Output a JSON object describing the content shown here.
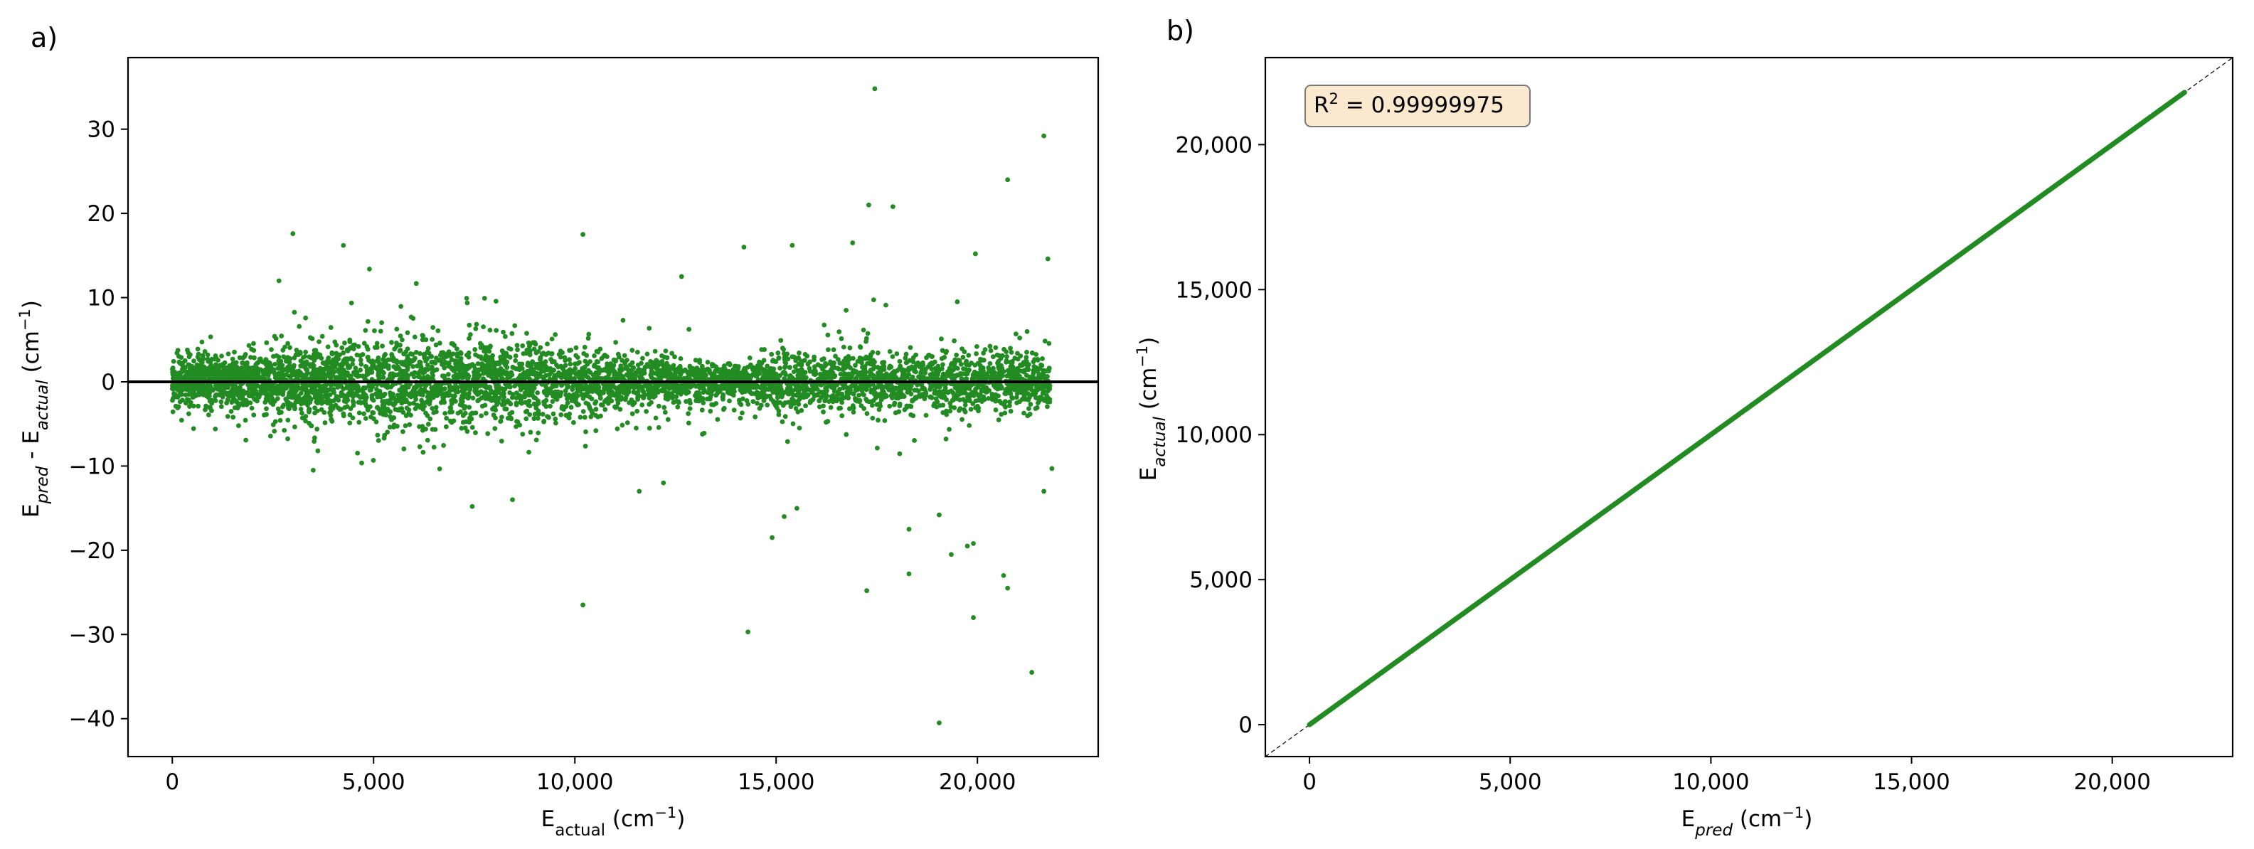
{
  "chart_data": [
    {
      "panel_label": "a)",
      "type": "scatter",
      "xlabel": {
        "main": "E",
        "sub": "actual",
        "unit": " (cm",
        "sup": "−1",
        "close": ")"
      },
      "ylabel": {
        "main": "E",
        "sub1": "pred",
        "mid": " - E",
        "sub2": "actual",
        "unit": " (cm",
        "sup": "−1",
        "close": ")"
      },
      "xlim": [
        -1100,
        23000
      ],
      "ylim": [
        -44.5,
        38.5
      ],
      "xticks": [
        0,
        5000,
        10000,
        15000,
        20000
      ],
      "xtick_labels": [
        "0",
        "5,000",
        "10,000",
        "15,000",
        "20,000"
      ],
      "yticks": [
        -40,
        -30,
        -20,
        -10,
        0,
        10,
        20,
        30
      ],
      "ytick_labels": [
        "−40",
        "−30",
        "−20",
        "−10",
        "0",
        "10",
        "20",
        "30"
      ],
      "reference_line": {
        "y": 0,
        "color": "#000000"
      },
      "marker_color": "#228b22",
      "series": [
        {
          "x_range": [
            0,
            21800
          ],
          "approx_count": 5200,
          "outliers": [
            [
              17450,
              34.8
            ],
            [
              21650,
              29.2
            ],
            [
              20750,
              24.0
            ],
            [
              17300,
              21.0
            ],
            [
              17900,
              20.8
            ],
            [
              4250,
              16.2
            ],
            [
              10200,
              17.5
            ],
            [
              14200,
              16.0
            ],
            [
              15400,
              16.2
            ],
            [
              16900,
              16.5
            ],
            [
              19950,
              15.2
            ],
            [
              21750,
              14.6
            ],
            [
              2650,
              12.0
            ],
            [
              12650,
              12.5
            ],
            [
              19500,
              9.5
            ],
            [
              7450,
              -14.8
            ],
            [
              14900,
              -18.5
            ],
            [
              15200,
              -16.0
            ],
            [
              18300,
              -17.5
            ],
            [
              18300,
              -22.8
            ],
            [
              19050,
              -15.8
            ],
            [
              19350,
              -20.5
            ],
            [
              19750,
              -19.5
            ],
            [
              19900,
              -19.2
            ],
            [
              20650,
              -23.0
            ],
            [
              20750,
              -24.5
            ],
            [
              19900,
              -28.0
            ],
            [
              10200,
              -26.5
            ],
            [
              14300,
              -29.7
            ],
            [
              17250,
              -24.8
            ],
            [
              21350,
              -34.5
            ],
            [
              19050,
              -40.5
            ],
            [
              21650,
              -13.0
            ],
            [
              21850,
              -10.3
            ],
            [
              3500,
              -10.5
            ],
            [
              8450,
              -14.0
            ],
            [
              11600,
              -13.0
            ],
            [
              12200,
              -12.0
            ]
          ]
        }
      ]
    },
    {
      "panel_label": "b)",
      "type": "scatter",
      "xlabel": {
        "main": "E",
        "sub": "pred",
        "unit": " (cm",
        "sup": "−1",
        "close": ")"
      },
      "ylabel": {
        "main": "E",
        "sub": "actual",
        "unit": " (cm",
        "sup": "−1",
        "close": ")"
      },
      "xlim": [
        -1100,
        23000
      ],
      "ylim": [
        -1100,
        23000
      ],
      "xticks": [
        0,
        5000,
        10000,
        15000,
        20000
      ],
      "xtick_labels": [
        "0",
        "5,000",
        "10,000",
        "15,000",
        "20,000"
      ],
      "yticks": [
        0,
        5000,
        10000,
        15000,
        20000
      ],
      "ytick_labels": [
        "0",
        "5,000",
        "10,000",
        "15,000",
        "20,000"
      ],
      "reference_line": {
        "type": "y=x",
        "style": "dashed",
        "color": "#000000"
      },
      "marker_color": "#228b22",
      "series": [
        {
          "x_range": [
            0,
            21800
          ],
          "relation": "y ≈ x"
        }
      ],
      "annotation": {
        "main": "R",
        "sup": "2",
        "rest": " = 0.99999975",
        "box_fill": "#fbe9cf",
        "box_stroke": "#7a7a7a"
      }
    }
  ]
}
